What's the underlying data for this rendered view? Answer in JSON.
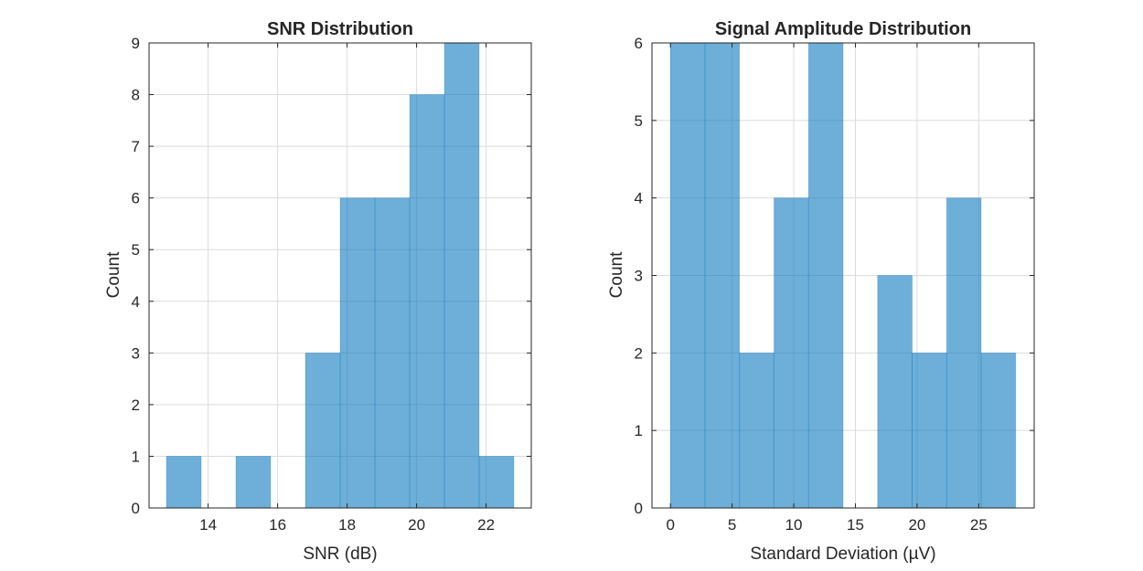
{
  "colors": {
    "bar": "#0072BD",
    "bar_opacity": 0.57,
    "grid": "#dcdcdc",
    "axis": "#262626"
  },
  "chart_data": [
    {
      "type": "bar",
      "title": "SNR Distribution",
      "xlabel": "SNR (dB)",
      "ylabel": "Count",
      "grid": true,
      "xlim": [
        12.3,
        23.3
      ],
      "ylim": [
        0,
        9
      ],
      "xticks": [
        14,
        16,
        18,
        20,
        22
      ],
      "yticks": [
        0,
        1,
        2,
        3,
        4,
        5,
        6,
        7,
        8,
        9
      ],
      "bin_edges": [
        12.8,
        13.8,
        14.8,
        15.8,
        16.8,
        17.8,
        18.8,
        19.8,
        20.8,
        21.8,
        22.8
      ],
      "values": [
        1,
        0,
        1,
        0,
        3,
        6,
        6,
        8,
        9,
        1
      ]
    },
    {
      "type": "bar",
      "title": "Signal Amplitude Distribution",
      "xlabel": "Standard Deviation (µV)",
      "ylabel": "Count",
      "grid": true,
      "xlim": [
        -1.5,
        29.5
      ],
      "ylim": [
        0,
        6
      ],
      "xticks": [
        0,
        5,
        10,
        15,
        20,
        25
      ],
      "yticks": [
        0,
        1,
        2,
        3,
        4,
        5,
        6
      ],
      "bin_edges": [
        0,
        2.8,
        5.6,
        8.4,
        11.2,
        14,
        16.8,
        19.6,
        22.4,
        25.2,
        28
      ],
      "values": [
        6,
        6,
        2,
        4,
        6,
        0,
        3,
        2,
        4,
        2
      ]
    }
  ]
}
